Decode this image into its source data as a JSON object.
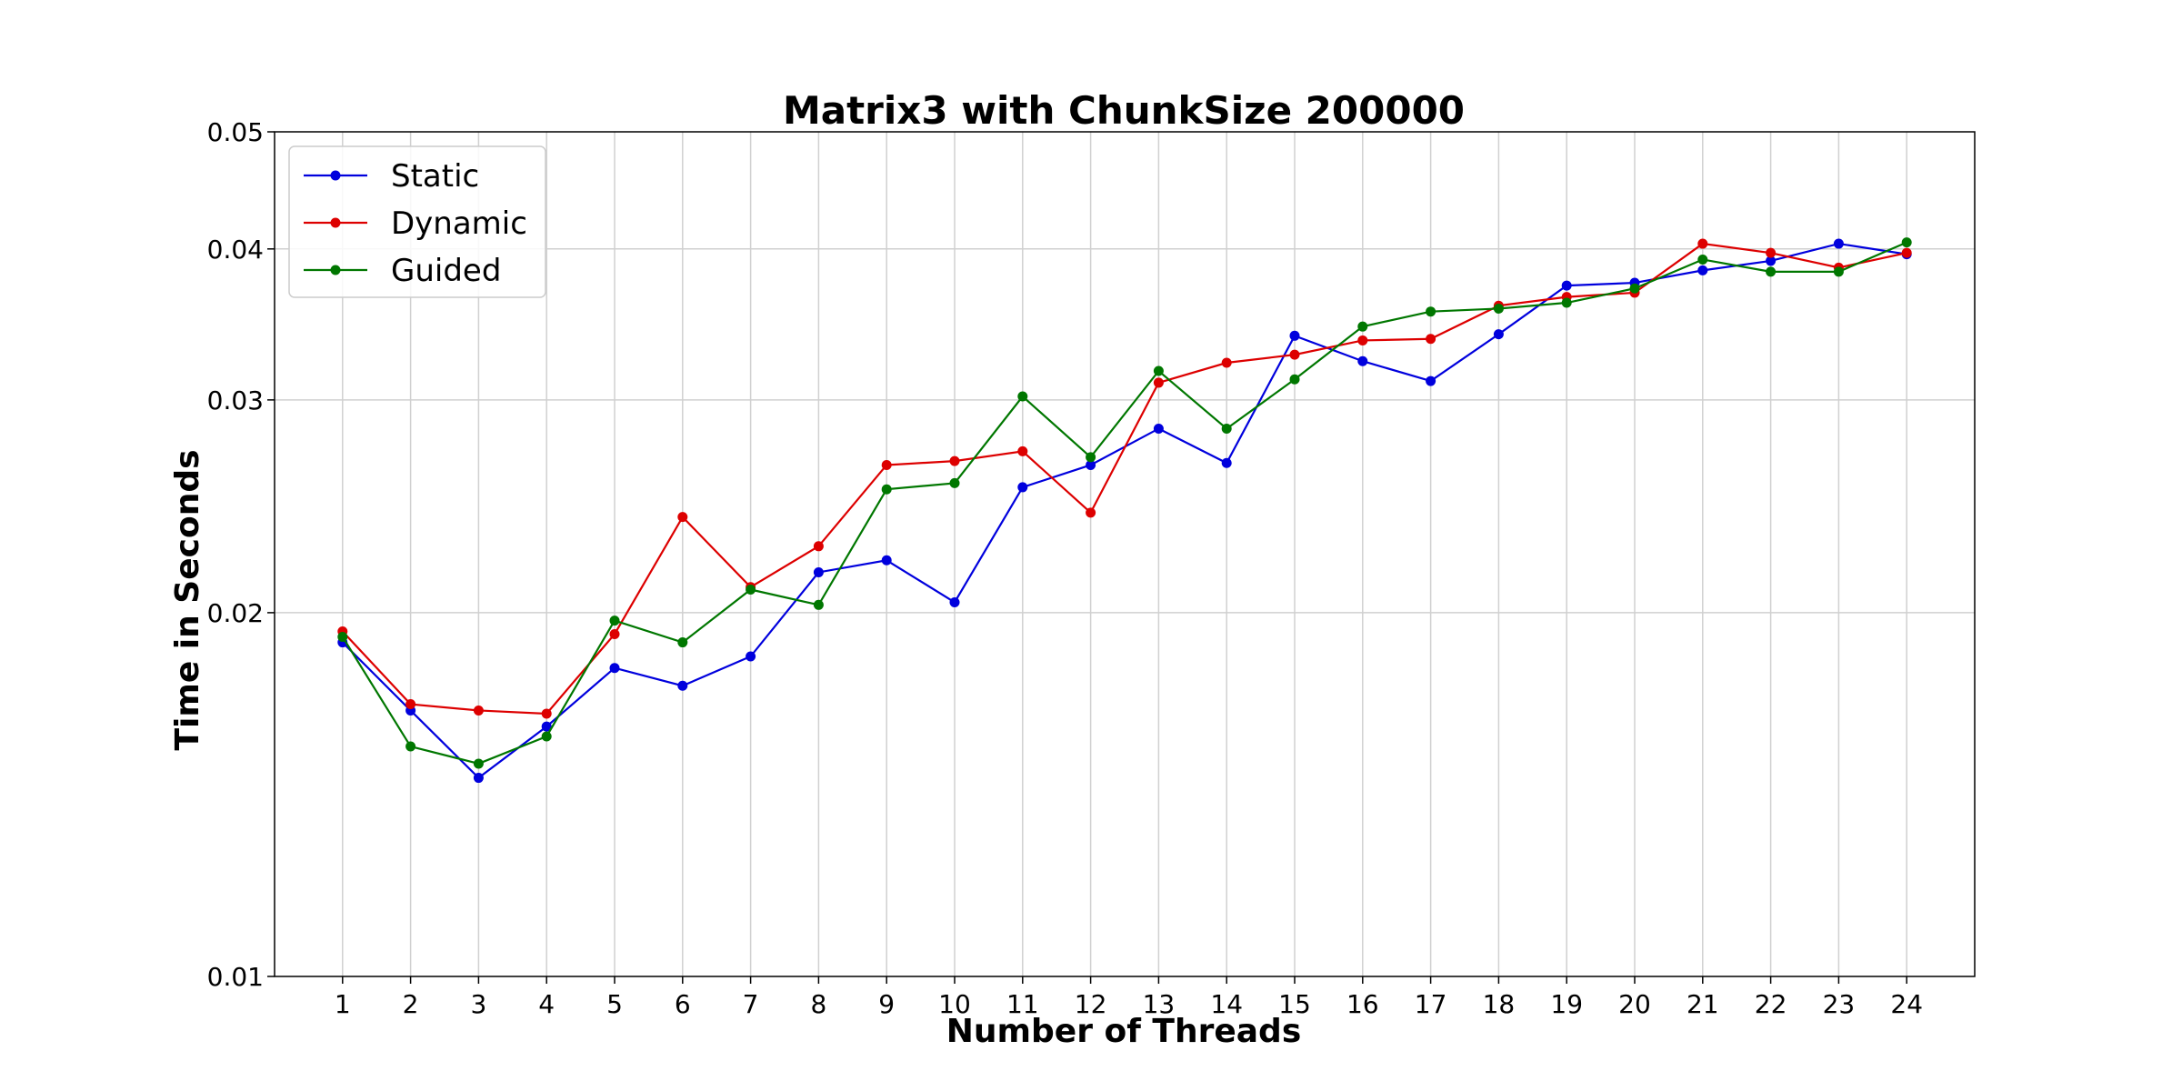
{
  "chart_data": {
    "type": "line",
    "title": "Matrix3 with ChunkSize 200000",
    "xlabel": "Number of Threads",
    "ylabel": "Time in Seconds",
    "x": [
      1,
      2,
      3,
      4,
      5,
      6,
      7,
      8,
      9,
      10,
      11,
      12,
      13,
      14,
      15,
      16,
      17,
      18,
      19,
      20,
      21,
      22,
      23,
      24
    ],
    "yscale": "log",
    "ylim": [
      0.01,
      0.05
    ],
    "yticks": [
      0.01,
      0.02,
      0.03,
      0.04,
      0.05
    ],
    "ytick_labels": [
      "0.01",
      "0.02",
      "0.03",
      "0.04",
      "0.05"
    ],
    "xtick_labels": [
      "1",
      "2",
      "3",
      "4",
      "5",
      "6",
      "7",
      "8",
      "9",
      "10",
      "11",
      "12",
      "13",
      "14",
      "15",
      "16",
      "17",
      "18",
      "19",
      "20",
      "21",
      "22",
      "23",
      "24"
    ],
    "grid": true,
    "legend_position": "top-left",
    "series": [
      {
        "name": "Static",
        "color": "#0000dd",
        "values": [
          0.0189,
          0.0166,
          0.0146,
          0.0161,
          0.018,
          0.0174,
          0.0184,
          0.0216,
          0.0221,
          0.0204,
          0.0254,
          0.0265,
          0.0284,
          0.0266,
          0.0339,
          0.0323,
          0.0311,
          0.034,
          0.0373,
          0.0375,
          0.0384,
          0.0391,
          0.0404,
          0.0396
        ]
      },
      {
        "name": "Dynamic",
        "color": "#dd0000",
        "values": [
          0.0193,
          0.0168,
          0.0166,
          0.0165,
          0.0192,
          0.024,
          0.021,
          0.0227,
          0.0265,
          0.0267,
          0.0272,
          0.0242,
          0.031,
          0.0322,
          0.0327,
          0.0336,
          0.0337,
          0.0359,
          0.0365,
          0.0368,
          0.0404,
          0.0397,
          0.0386,
          0.0397
        ]
      },
      {
        "name": "Guided",
        "color": "#007700",
        "values": [
          0.0191,
          0.0155,
          0.015,
          0.0158,
          0.0197,
          0.0189,
          0.0209,
          0.0203,
          0.0253,
          0.0256,
          0.0302,
          0.0269,
          0.0317,
          0.0284,
          0.0312,
          0.0345,
          0.0355,
          0.0357,
          0.0361,
          0.0371,
          0.0392,
          0.0383,
          0.0383,
          0.0405
        ]
      }
    ]
  }
}
